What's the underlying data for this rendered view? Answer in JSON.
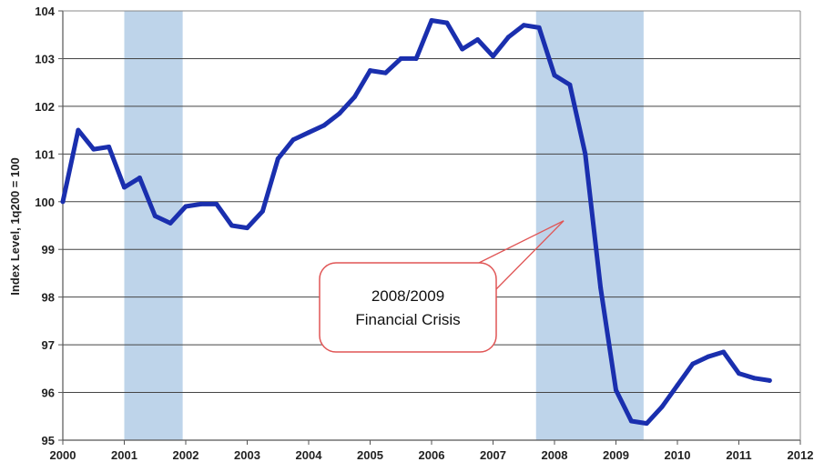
{
  "chart_data": {
    "type": "line",
    "title": "",
    "xlabel": "",
    "ylabel": "Index Level, 1q200 = 100",
    "xlim": [
      2000,
      2012
    ],
    "ylim": [
      95,
      104
    ],
    "x_ticks": [
      "2000",
      "2001",
      "2002",
      "2003",
      "2004",
      "2005",
      "2006",
      "2007",
      "2008",
      "2009",
      "2010",
      "2011",
      "2012"
    ],
    "y_ticks": [
      "95",
      "96",
      "97",
      "98",
      "99",
      "100",
      "101",
      "102",
      "103",
      "104"
    ],
    "grid": "horizontal",
    "recession_bands": [
      [
        2001.0,
        2001.95
      ],
      [
        2007.7,
        2009.45
      ]
    ],
    "annotation": {
      "lines": [
        "2008/2009",
        "Financial Crisis"
      ],
      "points_to": {
        "x": 2008.15,
        "y": 99.6
      }
    },
    "series": [
      {
        "color": "#1a2fae",
        "x": [
          2000.0,
          2000.25,
          2000.5,
          2000.75,
          2001.0,
          2001.25,
          2001.5,
          2001.75,
          2002.0,
          2002.25,
          2002.5,
          2002.75,
          2003.0,
          2003.25,
          2003.5,
          2003.75,
          2004.0,
          2004.25,
          2004.5,
          2004.75,
          2005.0,
          2005.25,
          2005.5,
          2005.75,
          2006.0,
          2006.25,
          2006.5,
          2006.75,
          2007.0,
          2007.25,
          2007.5,
          2007.75,
          2008.0,
          2008.25,
          2008.5,
          2008.75,
          2009.0,
          2009.25,
          2009.5,
          2009.75,
          2010.0,
          2010.25,
          2010.5,
          2010.75,
          2011.0,
          2011.25,
          2011.5
        ],
        "y": [
          100.0,
          101.5,
          101.1,
          101.15,
          100.3,
          100.5,
          99.7,
          99.55,
          99.9,
          99.95,
          99.95,
          99.5,
          99.45,
          99.8,
          100.9,
          101.3,
          101.45,
          101.6,
          101.85,
          102.2,
          102.75,
          102.7,
          103.0,
          103.0,
          103.8,
          103.75,
          103.2,
          103.4,
          103.05,
          103.45,
          103.7,
          103.65,
          102.65,
          102.45,
          101.0,
          98.2,
          96.05,
          95.4,
          95.35,
          95.7,
          96.15,
          96.6,
          96.75,
          96.85,
          96.4,
          96.3,
          96.25
        ]
      }
    ]
  }
}
